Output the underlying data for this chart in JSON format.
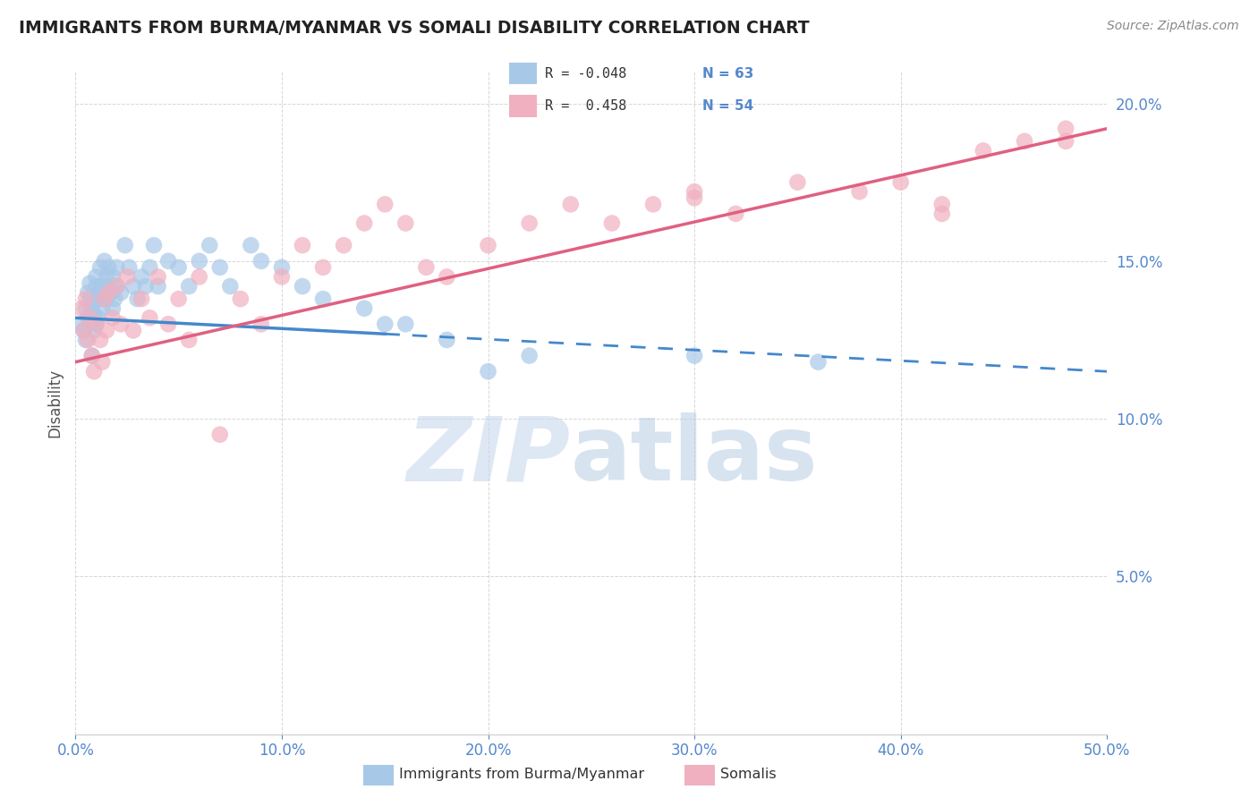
{
  "title": "IMMIGRANTS FROM BURMA/MYANMAR VS SOMALI DISABILITY CORRELATION CHART",
  "source": "Source: ZipAtlas.com",
  "ylabel": "Disability",
  "xlim": [
    0.0,
    0.5
  ],
  "ylim": [
    0.0,
    0.21
  ],
  "yticks": [
    0.05,
    0.1,
    0.15,
    0.2
  ],
  "ytick_labels": [
    "5.0%",
    "10.0%",
    "15.0%",
    "20.0%"
  ],
  "xticks": [
    0.0,
    0.1,
    0.2,
    0.3,
    0.4,
    0.5
  ],
  "xtick_labels": [
    "0.0%",
    "10.0%",
    "20.0%",
    "30.0%",
    "40.0%",
    "50.0%"
  ],
  "color_blue": "#a8c8e8",
  "color_pink": "#f0b0c0",
  "color_blue_line": "#4488cc",
  "color_pink_line": "#e06080",
  "blue_scatter_x": [
    0.003,
    0.004,
    0.005,
    0.005,
    0.006,
    0.006,
    0.007,
    0.007,
    0.008,
    0.008,
    0.009,
    0.009,
    0.01,
    0.01,
    0.01,
    0.011,
    0.011,
    0.012,
    0.012,
    0.013,
    0.013,
    0.014,
    0.014,
    0.015,
    0.015,
    0.016,
    0.016,
    0.017,
    0.018,
    0.018,
    0.019,
    0.02,
    0.02,
    0.022,
    0.024,
    0.026,
    0.028,
    0.03,
    0.032,
    0.034,
    0.036,
    0.038,
    0.04,
    0.045,
    0.05,
    0.055,
    0.06,
    0.065,
    0.07,
    0.075,
    0.085,
    0.09,
    0.1,
    0.11,
    0.12,
    0.14,
    0.15,
    0.16,
    0.18,
    0.2,
    0.22,
    0.3,
    0.36
  ],
  "blue_scatter_y": [
    0.13,
    0.128,
    0.135,
    0.125,
    0.132,
    0.14,
    0.138,
    0.143,
    0.135,
    0.12,
    0.128,
    0.133,
    0.13,
    0.142,
    0.145,
    0.138,
    0.132,
    0.14,
    0.148,
    0.135,
    0.142,
    0.138,
    0.15,
    0.145,
    0.138,
    0.142,
    0.148,
    0.14,
    0.135,
    0.145,
    0.138,
    0.142,
    0.148,
    0.14,
    0.155,
    0.148,
    0.142,
    0.138,
    0.145,
    0.142,
    0.148,
    0.155,
    0.142,
    0.15,
    0.148,
    0.142,
    0.15,
    0.155,
    0.148,
    0.142,
    0.155,
    0.15,
    0.148,
    0.142,
    0.138,
    0.135,
    0.13,
    0.13,
    0.125,
    0.115,
    0.12,
    0.12,
    0.118
  ],
  "pink_scatter_x": [
    0.003,
    0.004,
    0.005,
    0.006,
    0.007,
    0.008,
    0.009,
    0.01,
    0.012,
    0.013,
    0.014,
    0.015,
    0.016,
    0.018,
    0.02,
    0.022,
    0.025,
    0.028,
    0.032,
    0.036,
    0.04,
    0.045,
    0.05,
    0.055,
    0.06,
    0.07,
    0.08,
    0.09,
    0.1,
    0.11,
    0.12,
    0.13,
    0.14,
    0.15,
    0.16,
    0.17,
    0.18,
    0.2,
    0.22,
    0.24,
    0.26,
    0.28,
    0.3,
    0.32,
    0.35,
    0.38,
    0.4,
    0.42,
    0.44,
    0.46,
    0.48,
    0.3,
    0.42,
    0.48
  ],
  "pink_scatter_y": [
    0.135,
    0.128,
    0.138,
    0.125,
    0.132,
    0.12,
    0.115,
    0.13,
    0.125,
    0.118,
    0.138,
    0.128,
    0.14,
    0.132,
    0.142,
    0.13,
    0.145,
    0.128,
    0.138,
    0.132,
    0.145,
    0.13,
    0.138,
    0.125,
    0.145,
    0.095,
    0.138,
    0.13,
    0.145,
    0.155,
    0.148,
    0.155,
    0.162,
    0.168,
    0.162,
    0.148,
    0.145,
    0.155,
    0.162,
    0.168,
    0.162,
    0.168,
    0.172,
    0.165,
    0.175,
    0.172,
    0.175,
    0.168,
    0.185,
    0.188,
    0.192,
    0.17,
    0.165,
    0.188
  ],
  "blue_line_solid_end": 0.15,
  "blue_line_start_y": 0.132,
  "blue_line_end_y": 0.115,
  "pink_line_start_y": 0.118,
  "pink_line_end_y": 0.192
}
